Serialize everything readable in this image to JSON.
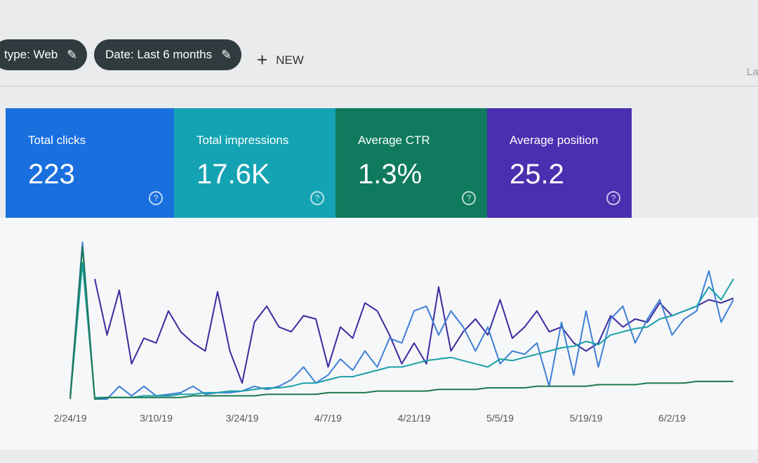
{
  "toolbar": {
    "filters": [
      "type: Web",
      "Date: Last 6 months"
    ],
    "new_button": "NEW",
    "corner_text": "La"
  },
  "cards": [
    {
      "title": "Total clicks",
      "value": "223",
      "help": "?"
    },
    {
      "title": "Total impressions",
      "value": "17.6K",
      "help": "?"
    },
    {
      "title": "Average CTR",
      "value": "1.3%",
      "help": "?"
    },
    {
      "title": "Average position",
      "value": "25.2",
      "help": "?"
    }
  ],
  "chart_data": {
    "type": "line",
    "x": [
      "2/24/19",
      null,
      null,
      null,
      null,
      null,
      null,
      "3/10/19",
      null,
      null,
      null,
      null,
      null,
      null,
      "3/24/19",
      null,
      null,
      null,
      null,
      null,
      null,
      "4/7/19",
      null,
      null,
      null,
      null,
      null,
      null,
      "4/21/19",
      null,
      null,
      null,
      null,
      null,
      null,
      "5/5/19",
      null,
      null,
      null,
      null,
      null,
      null,
      "5/19/19",
      null,
      null,
      null,
      null,
      null,
      null,
      "6/2/19",
      null,
      null,
      null,
      null,
      null
    ],
    "ylim": [
      0,
      100
    ],
    "series": [
      {
        "color": "#3b2a9e",
        "values": [
          null,
          null,
          75,
          40,
          68,
          22,
          38,
          35,
          55,
          42,
          35,
          30,
          67,
          30,
          10,
          48,
          58,
          45,
          42,
          52,
          50,
          20,
          45,
          38,
          60,
          55,
          40,
          22,
          35,
          22,
          70,
          30,
          42,
          50,
          40,
          62,
          38,
          45,
          55,
          42,
          45,
          35,
          30,
          35,
          52,
          45,
          50,
          48,
          60,
          52,
          55,
          58,
          62,
          60,
          63
        ]
      },
      {
        "color": "#3d7fd6",
        "values": [
          2,
          98,
          0,
          0,
          8,
          2,
          8,
          2,
          3,
          4,
          8,
          3,
          4,
          4,
          5,
          8,
          6,
          8,
          12,
          20,
          10,
          15,
          25,
          18,
          30,
          20,
          38,
          35,
          55,
          58,
          40,
          55,
          45,
          30,
          45,
          22,
          30,
          28,
          35,
          8,
          48,
          15,
          55,
          20,
          50,
          58,
          35,
          50,
          62,
          40,
          50,
          55,
          80,
          48,
          62
        ]
      },
      {
        "color": "#1aa0a8",
        "values": [
          0,
          85,
          1,
          1,
          1,
          1,
          2,
          2,
          2,
          3,
          3,
          4,
          4,
          5,
          5,
          6,
          7,
          7,
          8,
          10,
          10,
          12,
          14,
          14,
          16,
          18,
          20,
          20,
          22,
          24,
          25,
          26,
          24,
          22,
          20,
          25,
          24,
          26,
          28,
          30,
          32,
          33,
          36,
          34,
          40,
          42,
          44,
          45,
          50,
          52,
          55,
          58,
          70,
          62,
          75
        ]
      },
      {
        "color": "#1e7a4f",
        "values": [
          0,
          95,
          0,
          1,
          1,
          1,
          1,
          1,
          1,
          1,
          2,
          2,
          2,
          2,
          2,
          2,
          3,
          3,
          3,
          3,
          3,
          4,
          4,
          4,
          4,
          5,
          5,
          5,
          5,
          5,
          6,
          6,
          6,
          6,
          7,
          7,
          7,
          7,
          8,
          8,
          8,
          8,
          8,
          9,
          9,
          9,
          9,
          10,
          10,
          10,
          10,
          11,
          11,
          11,
          11
        ]
      }
    ]
  }
}
